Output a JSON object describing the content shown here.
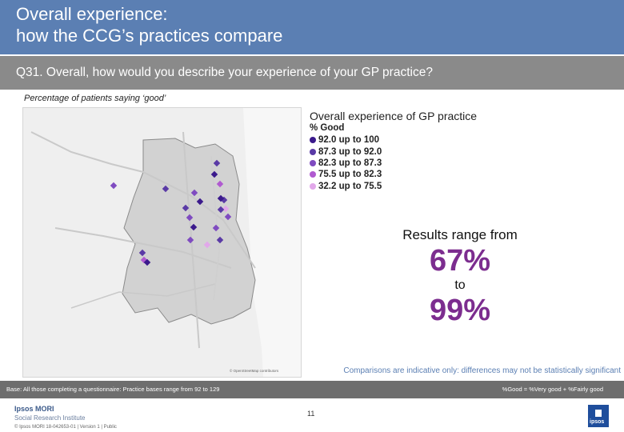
{
  "header": {
    "title_line1": "Overall experience:",
    "title_line2": "how the CCG’s practices compare"
  },
  "question": "Q31. Overall, how would you describe your experience of your GP practice?",
  "subheading": "Percentage of patients saying ‘good’",
  "legend": {
    "title": "Overall experience of GP practice",
    "subtitle": "% Good",
    "items": [
      {
        "label": "92.0 up to 100",
        "color": "#3b1a8c"
      },
      {
        "label": "87.3 up to 92.0",
        "color": "#5a3aa6"
      },
      {
        "label": "82.3 up to 87.3",
        "color": "#7f4bc0"
      },
      {
        "label": "75.5 up to 82.3",
        "color": "#b05ad0"
      },
      {
        "label": "32.2 up to 75.5",
        "color": "#e2a8ea"
      }
    ]
  },
  "range": {
    "label": "Results range from",
    "low": "67%",
    "connector": "to",
    "high": "99%"
  },
  "comparison_note": "Comparisons are indicative only: differences may not be statistically significant",
  "base_note": "Base: All those completing a questionnaire: Practice bases range from 92 to 129",
  "definition_note": "%Good = %Very good + %Fairly good",
  "map_credit": "© OpenStreetMap contributors",
  "footer": {
    "brand": "Ipsos MORI",
    "institute": "Social Research Institute",
    "copyright": "© Ipsos MORI     18-042653-01 | Version 1 | Public",
    "page": "11",
    "logo": "ipsos"
  }
}
